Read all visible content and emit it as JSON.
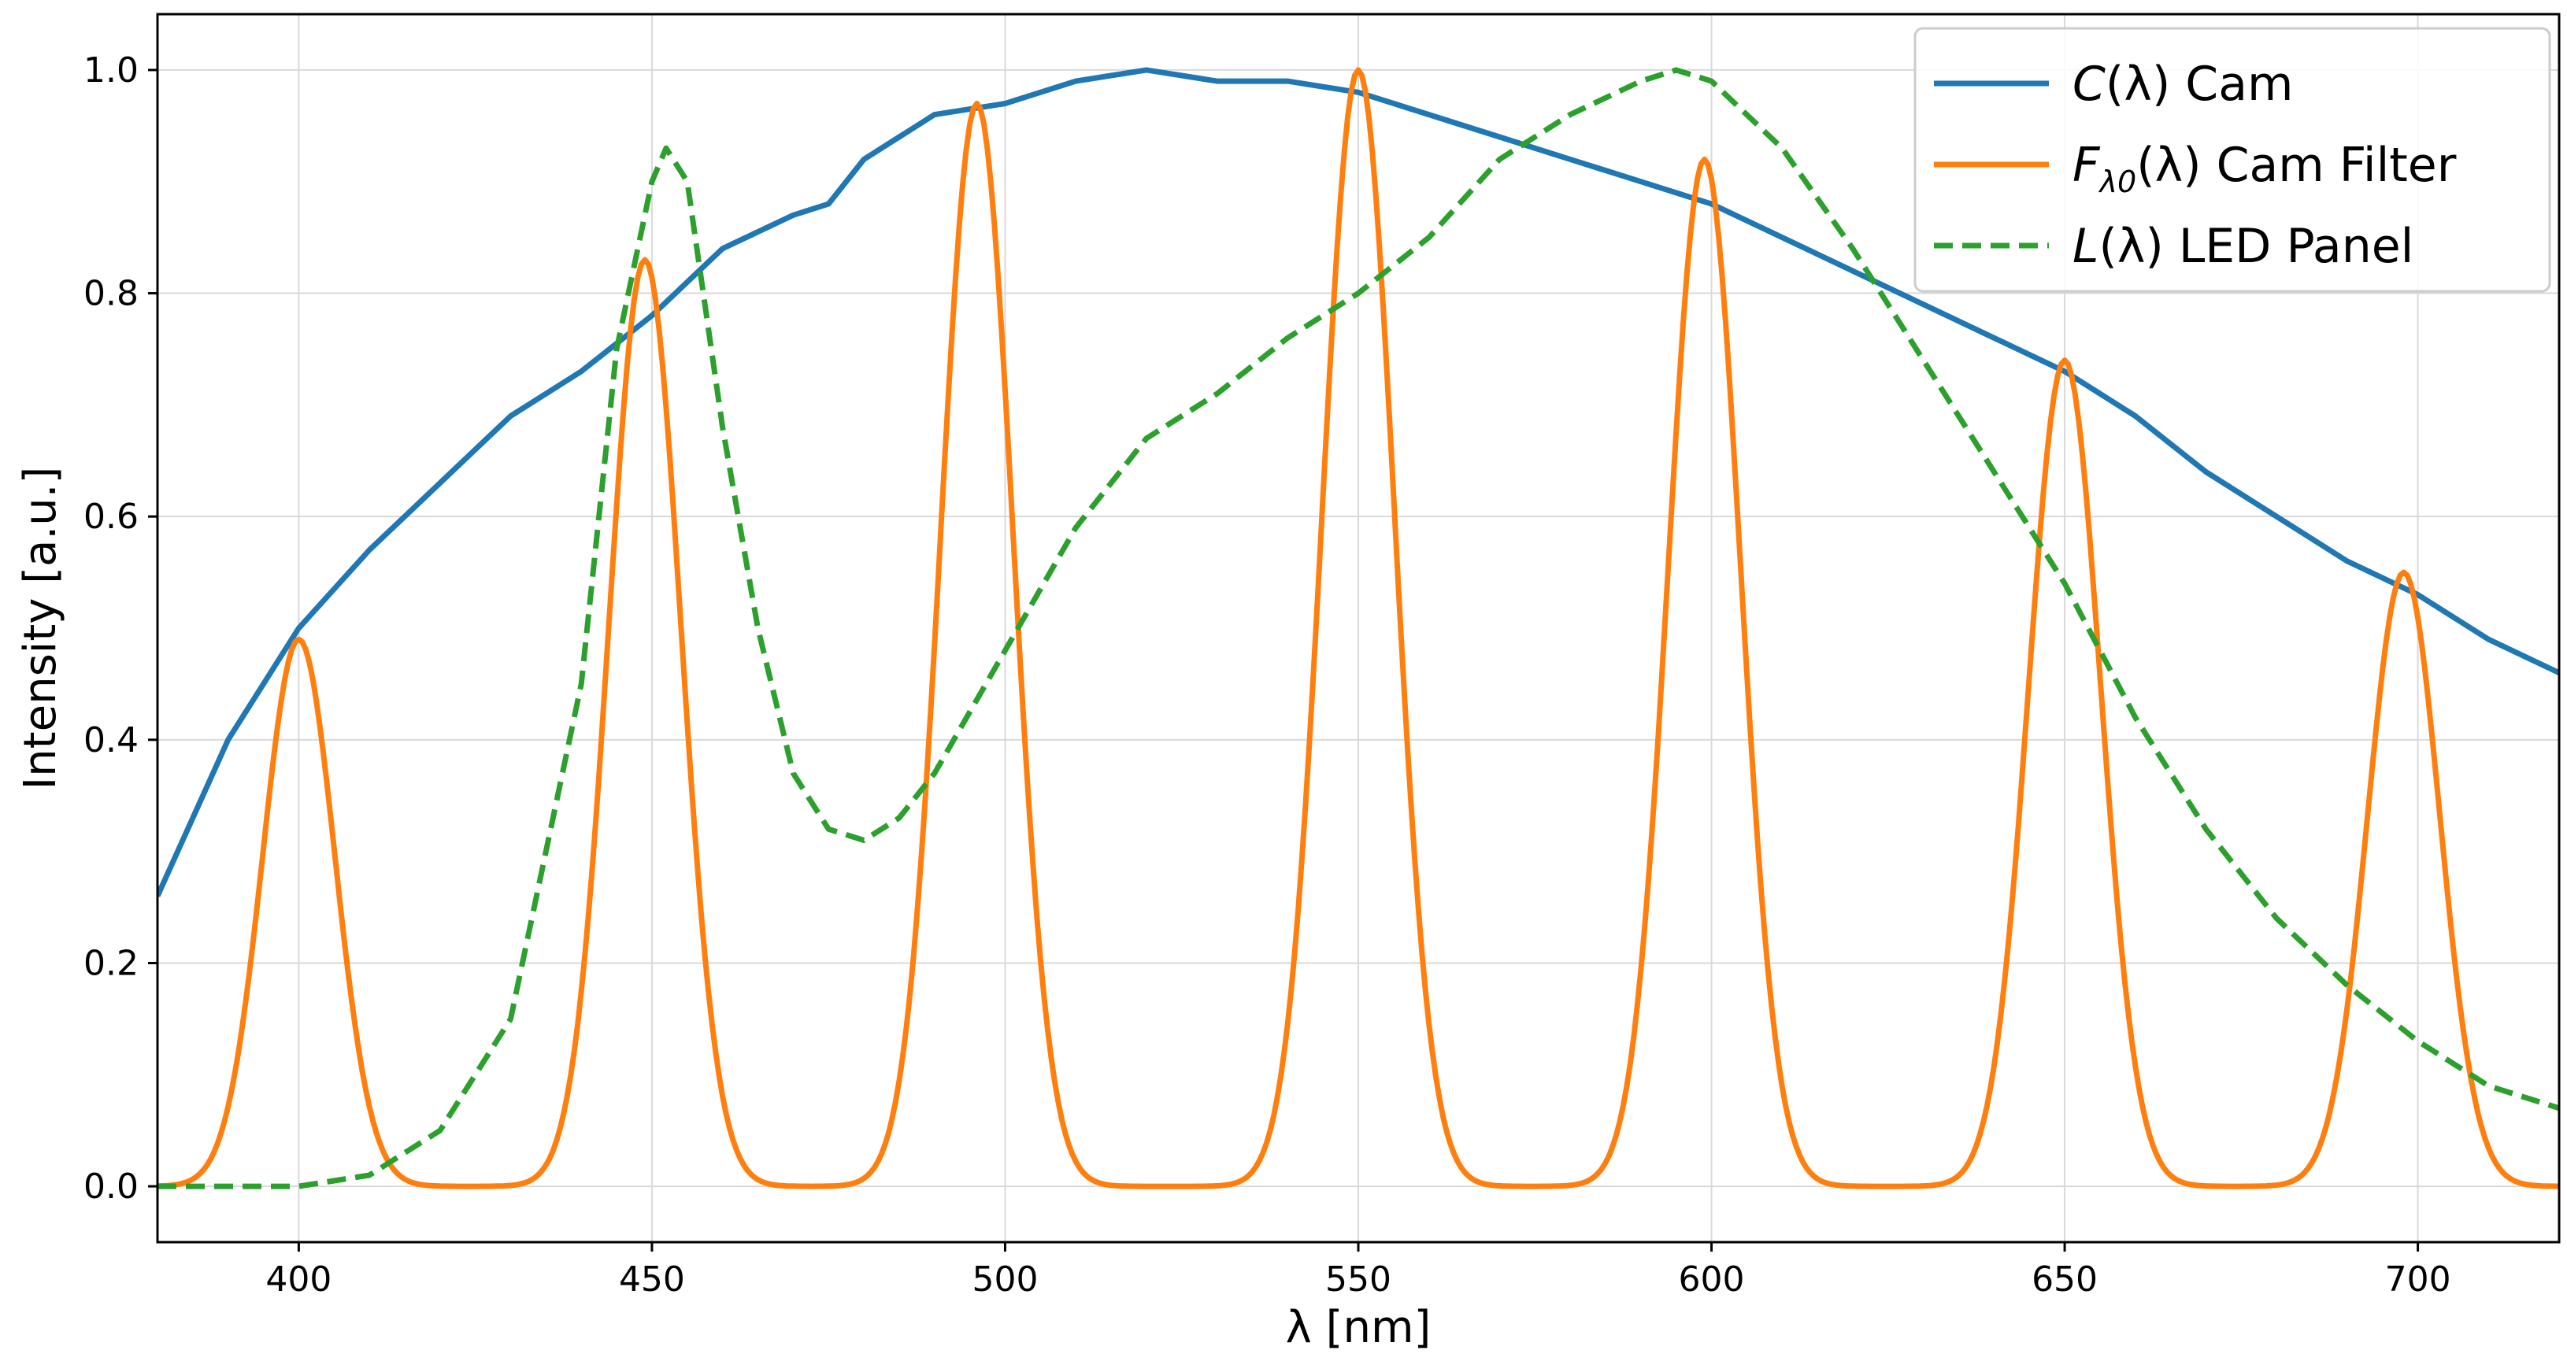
{
  "chart_data": {
    "type": "line",
    "xlabel": "λ [nm]",
    "ylabel": "Intensity [a.u.]",
    "xlim": [
      380,
      720
    ],
    "ylim": [
      -0.05,
      1.05
    ],
    "xticks": [
      400,
      450,
      500,
      550,
      600,
      650,
      700
    ],
    "yticks": [
      0.0,
      0.2,
      0.4,
      0.6,
      0.8,
      1.0
    ],
    "xtick_labels": [
      "400",
      "450",
      "500",
      "550",
      "600",
      "650",
      "700"
    ],
    "ytick_labels": [
      "0.0",
      "0.2",
      "0.4",
      "0.6",
      "0.8",
      "1.0"
    ],
    "grid": true,
    "legend_position": "top-right",
    "series": [
      {
        "name": "C(λ) Cam",
        "name_parts": {
          "symbol": "C",
          "rest": "(λ) Cam"
        },
        "color": "#1f77b4",
        "dash": "solid",
        "x": [
          380,
          390,
          400,
          410,
          420,
          430,
          440,
          450,
          460,
          470,
          475,
          480,
          490,
          500,
          510,
          520,
          530,
          540,
          550,
          560,
          570,
          580,
          590,
          600,
          610,
          620,
          630,
          640,
          650,
          660,
          670,
          680,
          690,
          700,
          710,
          720
        ],
        "y": [
          0.26,
          0.4,
          0.5,
          0.57,
          0.63,
          0.69,
          0.73,
          0.78,
          0.84,
          0.87,
          0.88,
          0.92,
          0.96,
          0.97,
          0.99,
          1.0,
          0.99,
          0.99,
          0.98,
          0.96,
          0.94,
          0.92,
          0.9,
          0.88,
          0.85,
          0.82,
          0.79,
          0.76,
          0.73,
          0.69,
          0.64,
          0.6,
          0.56,
          0.53,
          0.49,
          0.46
        ]
      },
      {
        "name": "Fλ0(λ) Cam Filter",
        "name_parts": {
          "symbol": "F",
          "sub": "λ0",
          "rest": "(λ) Cam Filter"
        },
        "color": "#ff7f0e",
        "dash": "solid",
        "peaks": [
          {
            "center": 400,
            "height": 0.49
          },
          {
            "center": 449,
            "height": 0.83
          },
          {
            "center": 496,
            "height": 0.97
          },
          {
            "center": 550,
            "height": 1.0
          },
          {
            "center": 599,
            "height": 0.92
          },
          {
            "center": 650,
            "height": 0.74
          },
          {
            "center": 698,
            "height": 0.55
          }
        ],
        "peak_fwhm_nm": 12
      },
      {
        "name": "L(λ) LED Panel",
        "name_parts": {
          "symbol": "L",
          "rest": "(λ) LED Panel"
        },
        "color": "#2ca02c",
        "dash": "dashed",
        "x": [
          380,
          400,
          410,
          420,
          430,
          440,
          445,
          450,
          452,
          455,
          460,
          465,
          470,
          475,
          480,
          485,
          490,
          500,
          510,
          520,
          530,
          540,
          550,
          560,
          570,
          580,
          590,
          595,
          600,
          610,
          620,
          630,
          640,
          650,
          660,
          670,
          680,
          690,
          700,
          710,
          720
        ],
        "y": [
          0.0,
          0.0,
          0.01,
          0.05,
          0.15,
          0.45,
          0.75,
          0.9,
          0.93,
          0.9,
          0.68,
          0.5,
          0.37,
          0.32,
          0.31,
          0.33,
          0.37,
          0.48,
          0.59,
          0.67,
          0.71,
          0.76,
          0.8,
          0.85,
          0.92,
          0.96,
          0.99,
          1.0,
          0.99,
          0.93,
          0.84,
          0.74,
          0.64,
          0.54,
          0.42,
          0.32,
          0.24,
          0.18,
          0.13,
          0.09,
          0.07
        ]
      }
    ]
  }
}
